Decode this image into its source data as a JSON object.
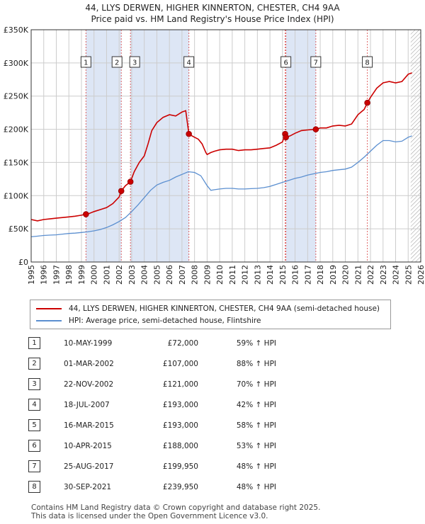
{
  "title_line1": "44, LLYS DERWEN, HIGHER KINNERTON, CHESTER, CH4 9AA",
  "title_line2": "Price paid vs. HM Land Registry's House Price Index (HPI)",
  "colors": {
    "property": "#cc0000",
    "hpi": "#5b8fd0",
    "shade": "#dde6f5",
    "grid": "#cccccc"
  },
  "chart_data": {
    "type": "line",
    "xlim": [
      1995,
      2026
    ],
    "ylim": [
      0,
      350000
    ],
    "x_ticks": [
      1995,
      1996,
      1997,
      1998,
      1999,
      2000,
      2001,
      2002,
      2003,
      2004,
      2005,
      2006,
      2007,
      2008,
      2009,
      2010,
      2011,
      2012,
      2013,
      2014,
      2015,
      2016,
      2017,
      2018,
      2019,
      2020,
      2021,
      2022,
      2023,
      2024,
      2025,
      2026
    ],
    "y_ticks": [
      {
        "value": 0,
        "label": "£0"
      },
      {
        "value": 50000,
        "label": "£50K"
      },
      {
        "value": 100000,
        "label": "£100K"
      },
      {
        "value": 150000,
        "label": "£150K"
      },
      {
        "value": 200000,
        "label": "£200K"
      },
      {
        "value": 250000,
        "label": "£250K"
      },
      {
        "value": 300000,
        "label": "£300K"
      },
      {
        "value": 350000,
        "label": "£350K"
      }
    ],
    "future_from": 2025.2,
    "series": [
      {
        "name": "44, LLYS DERWEN, HIGHER KINNERTON, CHESTER, CH4 9AA (semi-detached house)",
        "color": "#cc0000",
        "x": [
          1995.0,
          1995.5,
          1996.0,
          1996.5,
          1997.0,
          1997.5,
          1998.0,
          1998.5,
          1999.0,
          1999.36,
          1999.6,
          2000.0,
          2000.5,
          2001.0,
          2001.5,
          2002.0,
          2002.17,
          2002.5,
          2002.9,
          2003.2,
          2003.6,
          2004.0,
          2004.3,
          2004.6,
          2005.0,
          2005.5,
          2006.0,
          2006.5,
          2007.0,
          2007.3,
          2007.55,
          2007.8,
          2008.0,
          2008.3,
          2008.6,
          2008.9,
          2009.0,
          2009.3,
          2009.6,
          2010.0,
          2010.5,
          2011.0,
          2011.5,
          2012.0,
          2012.5,
          2013.0,
          2013.5,
          2014.0,
          2014.5,
          2015.0,
          2015.21,
          2015.27,
          2015.6,
          2016.0,
          2016.5,
          2017.0,
          2017.65,
          2018.0,
          2018.5,
          2019.0,
          2019.5,
          2020.0,
          2020.5,
          2021.0,
          2021.5,
          2021.75,
          2022.0,
          2022.5,
          2023.0,
          2023.5,
          2024.0,
          2024.5,
          2025.0,
          2025.3
        ],
        "y": [
          64000,
          62000,
          64000,
          65000,
          66000,
          67000,
          68000,
          69000,
          70500,
          72000,
          73000,
          76000,
          79000,
          82000,
          88000,
          98000,
          107000,
          115000,
          121000,
          136000,
          150000,
          160000,
          178000,
          198000,
          210000,
          218000,
          222000,
          220000,
          226000,
          228000,
          193000,
          190000,
          188000,
          185000,
          178000,
          165000,
          162000,
          165000,
          167000,
          169000,
          170000,
          170000,
          168000,
          169000,
          169000,
          170000,
          171000,
          172000,
          176000,
          181000,
          193000,
          188000,
          190000,
          194000,
          198000,
          199000,
          199950,
          202000,
          202000,
          205000,
          206000,
          205000,
          208000,
          222000,
          230000,
          239950,
          248000,
          262000,
          270000,
          272000,
          270000,
          272000,
          283000,
          285000
        ]
      },
      {
        "name": "HPI: Average price, semi-detached house, Flintshire",
        "color": "#5b8fd0",
        "x": [
          1995.0,
          1995.5,
          1996.0,
          1996.5,
          1997.0,
          1997.5,
          1998.0,
          1998.5,
          1999.0,
          1999.5,
          2000.0,
          2000.5,
          2001.0,
          2001.5,
          2002.0,
          2002.5,
          2003.0,
          2003.5,
          2004.0,
          2004.5,
          2005.0,
          2005.5,
          2006.0,
          2006.5,
          2007.0,
          2007.5,
          2008.0,
          2008.5,
          2009.0,
          2009.3,
          2009.6,
          2010.0,
          2010.5,
          2011.0,
          2011.5,
          2012.0,
          2012.5,
          2013.0,
          2013.5,
          2014.0,
          2014.5,
          2015.0,
          2015.5,
          2016.0,
          2016.5,
          2017.0,
          2017.5,
          2018.0,
          2018.5,
          2019.0,
          2019.5,
          2020.0,
          2020.5,
          2021.0,
          2021.5,
          2022.0,
          2022.5,
          2023.0,
          2023.5,
          2024.0,
          2024.5,
          2025.0,
          2025.3
        ],
        "y": [
          38000,
          39000,
          40000,
          40500,
          41000,
          42000,
          43000,
          43500,
          44500,
          45500,
          47000,
          49000,
          52000,
          56000,
          61000,
          67000,
          76000,
          86000,
          97000,
          108000,
          116000,
          120000,
          123000,
          128000,
          132000,
          136000,
          135000,
          130000,
          115000,
          108000,
          109000,
          110000,
          111000,
          111000,
          110000,
          110000,
          110500,
          111000,
          112000,
          114000,
          117000,
          120000,
          123000,
          126000,
          128000,
          131000,
          133000,
          135000,
          136000,
          138000,
          139000,
          140000,
          143000,
          150000,
          158000,
          167000,
          176000,
          183000,
          183000,
          181000,
          182000,
          188000,
          190000
        ]
      }
    ],
    "sales": [
      {
        "n": "1",
        "x": 1999.36,
        "y": 72000
      },
      {
        "n": "2",
        "x": 2002.17,
        "y": 107000
      },
      {
        "n": "3",
        "x": 2002.9,
        "y": 121000
      },
      {
        "n": "4",
        "x": 2007.55,
        "y": 193000
      },
      {
        "n": "5",
        "x": 2015.21,
        "y": 193000
      },
      {
        "n": "6",
        "x": 2015.27,
        "y": 188000
      },
      {
        "n": "7",
        "x": 2017.65,
        "y": 199950
      },
      {
        "n": "8",
        "x": 2021.75,
        "y": 239950
      }
    ],
    "shaded_periods": [
      [
        1999.36,
        2002.17
      ],
      [
        2002.9,
        2007.55
      ],
      [
        2015.27,
        2017.65
      ],
      [
        2021.75,
        2021.75
      ]
    ]
  },
  "legend": {
    "property": "44, LLYS DERWEN, HIGHER KINNERTON, CHESTER, CH4 9AA (semi-detached house)",
    "hpi": "HPI: Average price, semi-detached house, Flintshire"
  },
  "table": [
    {
      "n": "1",
      "date": "10-MAY-1999",
      "price": "£72,000",
      "hpi": "59% ↑ HPI"
    },
    {
      "n": "2",
      "date": "01-MAR-2002",
      "price": "£107,000",
      "hpi": "88% ↑ HPI"
    },
    {
      "n": "3",
      "date": "22-NOV-2002",
      "price": "£121,000",
      "hpi": "70% ↑ HPI"
    },
    {
      "n": "4",
      "date": "18-JUL-2007",
      "price": "£193,000",
      "hpi": "42% ↑ HPI"
    },
    {
      "n": "5",
      "date": "16-MAR-2015",
      "price": "£193,000",
      "hpi": "58% ↑ HPI"
    },
    {
      "n": "6",
      "date": "10-APR-2015",
      "price": "£188,000",
      "hpi": "53% ↑ HPI"
    },
    {
      "n": "7",
      "date": "25-AUG-2017",
      "price": "£199,950",
      "hpi": "48% ↑ HPI"
    },
    {
      "n": "8",
      "date": "30-SEP-2021",
      "price": "£239,950",
      "hpi": "48% ↑ HPI"
    }
  ],
  "footer_line1": "Contains HM Land Registry data © Crown copyright and database right 2025.",
  "footer_line2": "This data is licensed under the Open Government Licence v3.0."
}
